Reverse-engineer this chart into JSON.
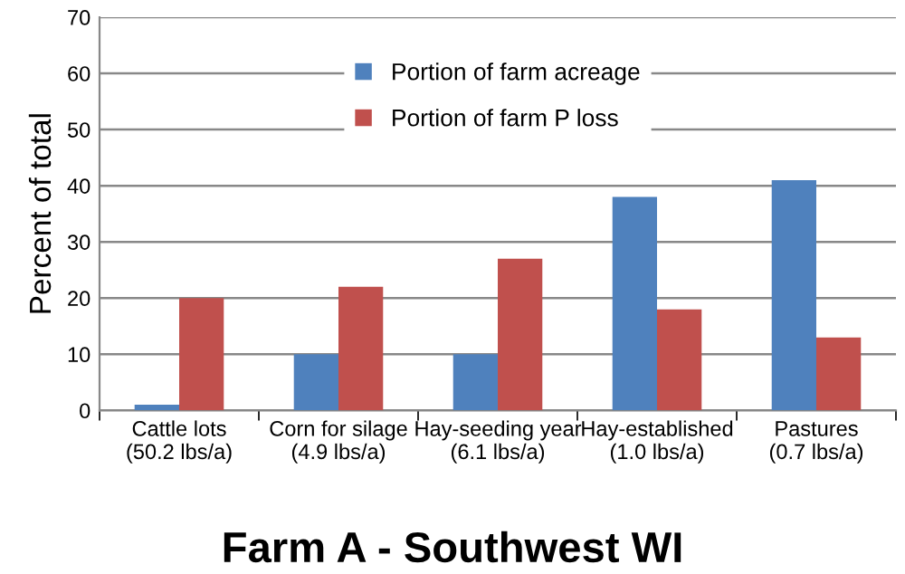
{
  "chart_data": {
    "type": "bar",
    "title": "Farm A - Southwest WI",
    "ylabel": "Percent of total",
    "categories": [
      "Cattle lots\n(50.2 lbs/a)",
      "Corn for silage\n(4.9 lbs/a)",
      "Hay-seeding year\n(6.1 lbs/a)",
      "Hay-established\n(1.0 lbs/a)",
      "Pastures\n(0.7 lbs/a)"
    ],
    "series": [
      {
        "name": "Portion of farm acreage",
        "color": "#4f81bd",
        "values": [
          1,
          10,
          10,
          38,
          41
        ]
      },
      {
        "name": "Portion of farm P loss",
        "color": "#c0504d",
        "values": [
          20,
          22,
          27,
          18,
          13
        ]
      }
    ],
    "ylim": [
      0,
      70
    ],
    "yticks": [
      0,
      10,
      20,
      30,
      40,
      50,
      60,
      70
    ],
    "grid": "y",
    "legend": "top"
  }
}
